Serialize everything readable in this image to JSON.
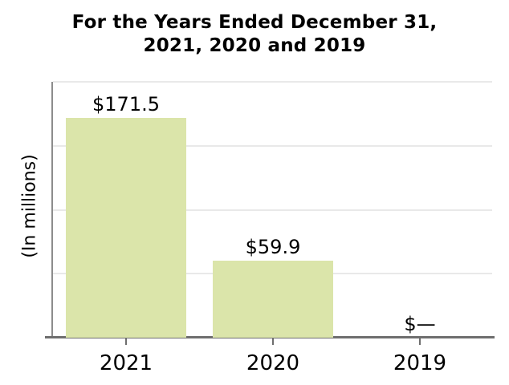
{
  "chart_data": {
    "type": "bar",
    "title": "For the Years Ended December 31, 2021, 2020 and 2019",
    "title_lines": [
      "For the Years Ended December 31,",
      "2021, 2020 and 2019"
    ],
    "ylabel": "(In millions)",
    "xlabel": "",
    "categories": [
      "2021",
      "2020",
      "2019"
    ],
    "values": [
      171.5,
      59.9,
      0
    ],
    "value_labels": [
      "$171.5",
      "$59.9",
      "$—"
    ],
    "ylim": [
      0,
      200
    ],
    "gridline_values": [
      50,
      100,
      150,
      200
    ],
    "grid": "horizontal-only",
    "legend": "none",
    "y_tick_labels_shown": false,
    "colors": {
      "bar_fill": "#dbe5aa",
      "gridline": "#e9e9e9",
      "axis_line": "#6e6e6e",
      "spine": "#8c8c8c",
      "text": "#000000",
      "background": "#ffffff"
    }
  }
}
